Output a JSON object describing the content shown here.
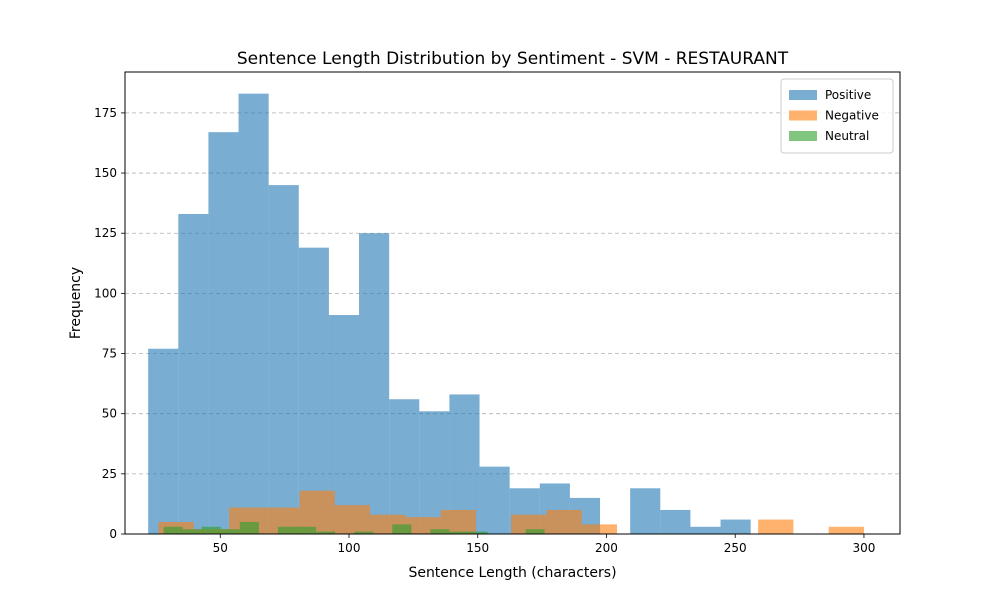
{
  "chart_data": {
    "type": "bar",
    "title": "Sentence Length Distribution by Sentiment - SVM - RESTAURANT",
    "xlabel": "Sentence Length (characters)",
    "ylabel": "Frequency",
    "xlim": [
      13,
      314
    ],
    "ylim": [
      0,
      192
    ],
    "xticks": [
      50,
      100,
      150,
      200,
      250,
      300
    ],
    "yticks": [
      0,
      25,
      50,
      75,
      100,
      125,
      150,
      175
    ],
    "grid": {
      "axis": "y",
      "style": "dashed"
    },
    "legend_position": "top-right",
    "series": [
      {
        "name": "Positive",
        "color": "#1f77b4",
        "bins": [
          {
            "x0": 22,
            "x1": 33.7,
            "value": 77
          },
          {
            "x0": 33.7,
            "x1": 45.4,
            "value": 133
          },
          {
            "x0": 45.4,
            "x1": 57.1,
            "value": 167
          },
          {
            "x0": 57.1,
            "x1": 68.8,
            "value": 183
          },
          {
            "x0": 68.8,
            "x1": 80.5,
            "value": 145
          },
          {
            "x0": 80.5,
            "x1": 92.2,
            "value": 119
          },
          {
            "x0": 92.2,
            "x1": 103.9,
            "value": 91
          },
          {
            "x0": 103.9,
            "x1": 115.6,
            "value": 125
          },
          {
            "x0": 115.6,
            "x1": 127.3,
            "value": 56
          },
          {
            "x0": 127.3,
            "x1": 139,
            "value": 51
          },
          {
            "x0": 139,
            "x1": 150.7,
            "value": 58
          },
          {
            "x0": 150.7,
            "x1": 162.4,
            "value": 28
          },
          {
            "x0": 162.4,
            "x1": 174.1,
            "value": 19
          },
          {
            "x0": 174.1,
            "x1": 185.8,
            "value": 21
          },
          {
            "x0": 185.8,
            "x1": 197.5,
            "value": 15
          },
          {
            "x0": 197.5,
            "x1": 209.2,
            "value": 0
          },
          {
            "x0": 209.2,
            "x1": 220.9,
            "value": 19
          },
          {
            "x0": 220.9,
            "x1": 232.6,
            "value": 10
          },
          {
            "x0": 232.6,
            "x1": 244.3,
            "value": 3
          },
          {
            "x0": 244.3,
            "x1": 256,
            "value": 6
          }
        ]
      },
      {
        "name": "Negative",
        "color": "#ff7f0e",
        "bins": [
          {
            "x0": 26,
            "x1": 39.7,
            "value": 5
          },
          {
            "x0": 39.7,
            "x1": 53.4,
            "value": 2
          },
          {
            "x0": 53.4,
            "x1": 67.1,
            "value": 11
          },
          {
            "x0": 67.1,
            "x1": 80.8,
            "value": 11
          },
          {
            "x0": 80.8,
            "x1": 94.5,
            "value": 18
          },
          {
            "x0": 94.5,
            "x1": 108.2,
            "value": 12
          },
          {
            "x0": 108.2,
            "x1": 121.9,
            "value": 8
          },
          {
            "x0": 121.9,
            "x1": 135.6,
            "value": 7
          },
          {
            "x0": 135.6,
            "x1": 149.3,
            "value": 10
          },
          {
            "x0": 149.3,
            "x1": 163,
            "value": 0
          },
          {
            "x0": 163,
            "x1": 176.7,
            "value": 8
          },
          {
            "x0": 176.7,
            "x1": 190.4,
            "value": 10
          },
          {
            "x0": 190.4,
            "x1": 204.1,
            "value": 4
          },
          {
            "x0": 204.1,
            "x1": 217.8,
            "value": 0
          },
          {
            "x0": 217.8,
            "x1": 231.5,
            "value": 0
          },
          {
            "x0": 231.5,
            "x1": 245.2,
            "value": 0
          },
          {
            "x0": 245.2,
            "x1": 258.9,
            "value": 0
          },
          {
            "x0": 258.9,
            "x1": 272.6,
            "value": 6
          },
          {
            "x0": 272.6,
            "x1": 286.3,
            "value": 0
          },
          {
            "x0": 286.3,
            "x1": 300,
            "value": 3
          }
        ]
      },
      {
        "name": "Neutral",
        "color": "#2ca02c",
        "bins": [
          {
            "x0": 28,
            "x1": 35.4,
            "value": 3
          },
          {
            "x0": 35.4,
            "x1": 42.8,
            "value": 2
          },
          {
            "x0": 42.8,
            "x1": 50.2,
            "value": 3
          },
          {
            "x0": 50.2,
            "x1": 57.6,
            "value": 2
          },
          {
            "x0": 57.6,
            "x1": 65,
            "value": 5
          },
          {
            "x0": 65,
            "x1": 72.4,
            "value": 0
          },
          {
            "x0": 72.4,
            "x1": 79.8,
            "value": 3
          },
          {
            "x0": 79.8,
            "x1": 87.2,
            "value": 3
          },
          {
            "x0": 87.2,
            "x1": 94.6,
            "value": 1
          },
          {
            "x0": 94.6,
            "x1": 102,
            "value": 0
          },
          {
            "x0": 102,
            "x1": 109.4,
            "value": 1
          },
          {
            "x0": 109.4,
            "x1": 116.8,
            "value": 0
          },
          {
            "x0": 116.8,
            "x1": 124.2,
            "value": 4
          },
          {
            "x0": 124.2,
            "x1": 131.6,
            "value": 0
          },
          {
            "x0": 131.6,
            "x1": 139,
            "value": 2
          },
          {
            "x0": 139,
            "x1": 146.4,
            "value": 1
          },
          {
            "x0": 146.4,
            "x1": 153.8,
            "value": 1
          },
          {
            "x0": 153.8,
            "x1": 161.2,
            "value": 0
          },
          {
            "x0": 161.2,
            "x1": 168.6,
            "value": 0
          },
          {
            "x0": 168.6,
            "x1": 176,
            "value": 2
          }
        ]
      }
    ]
  }
}
